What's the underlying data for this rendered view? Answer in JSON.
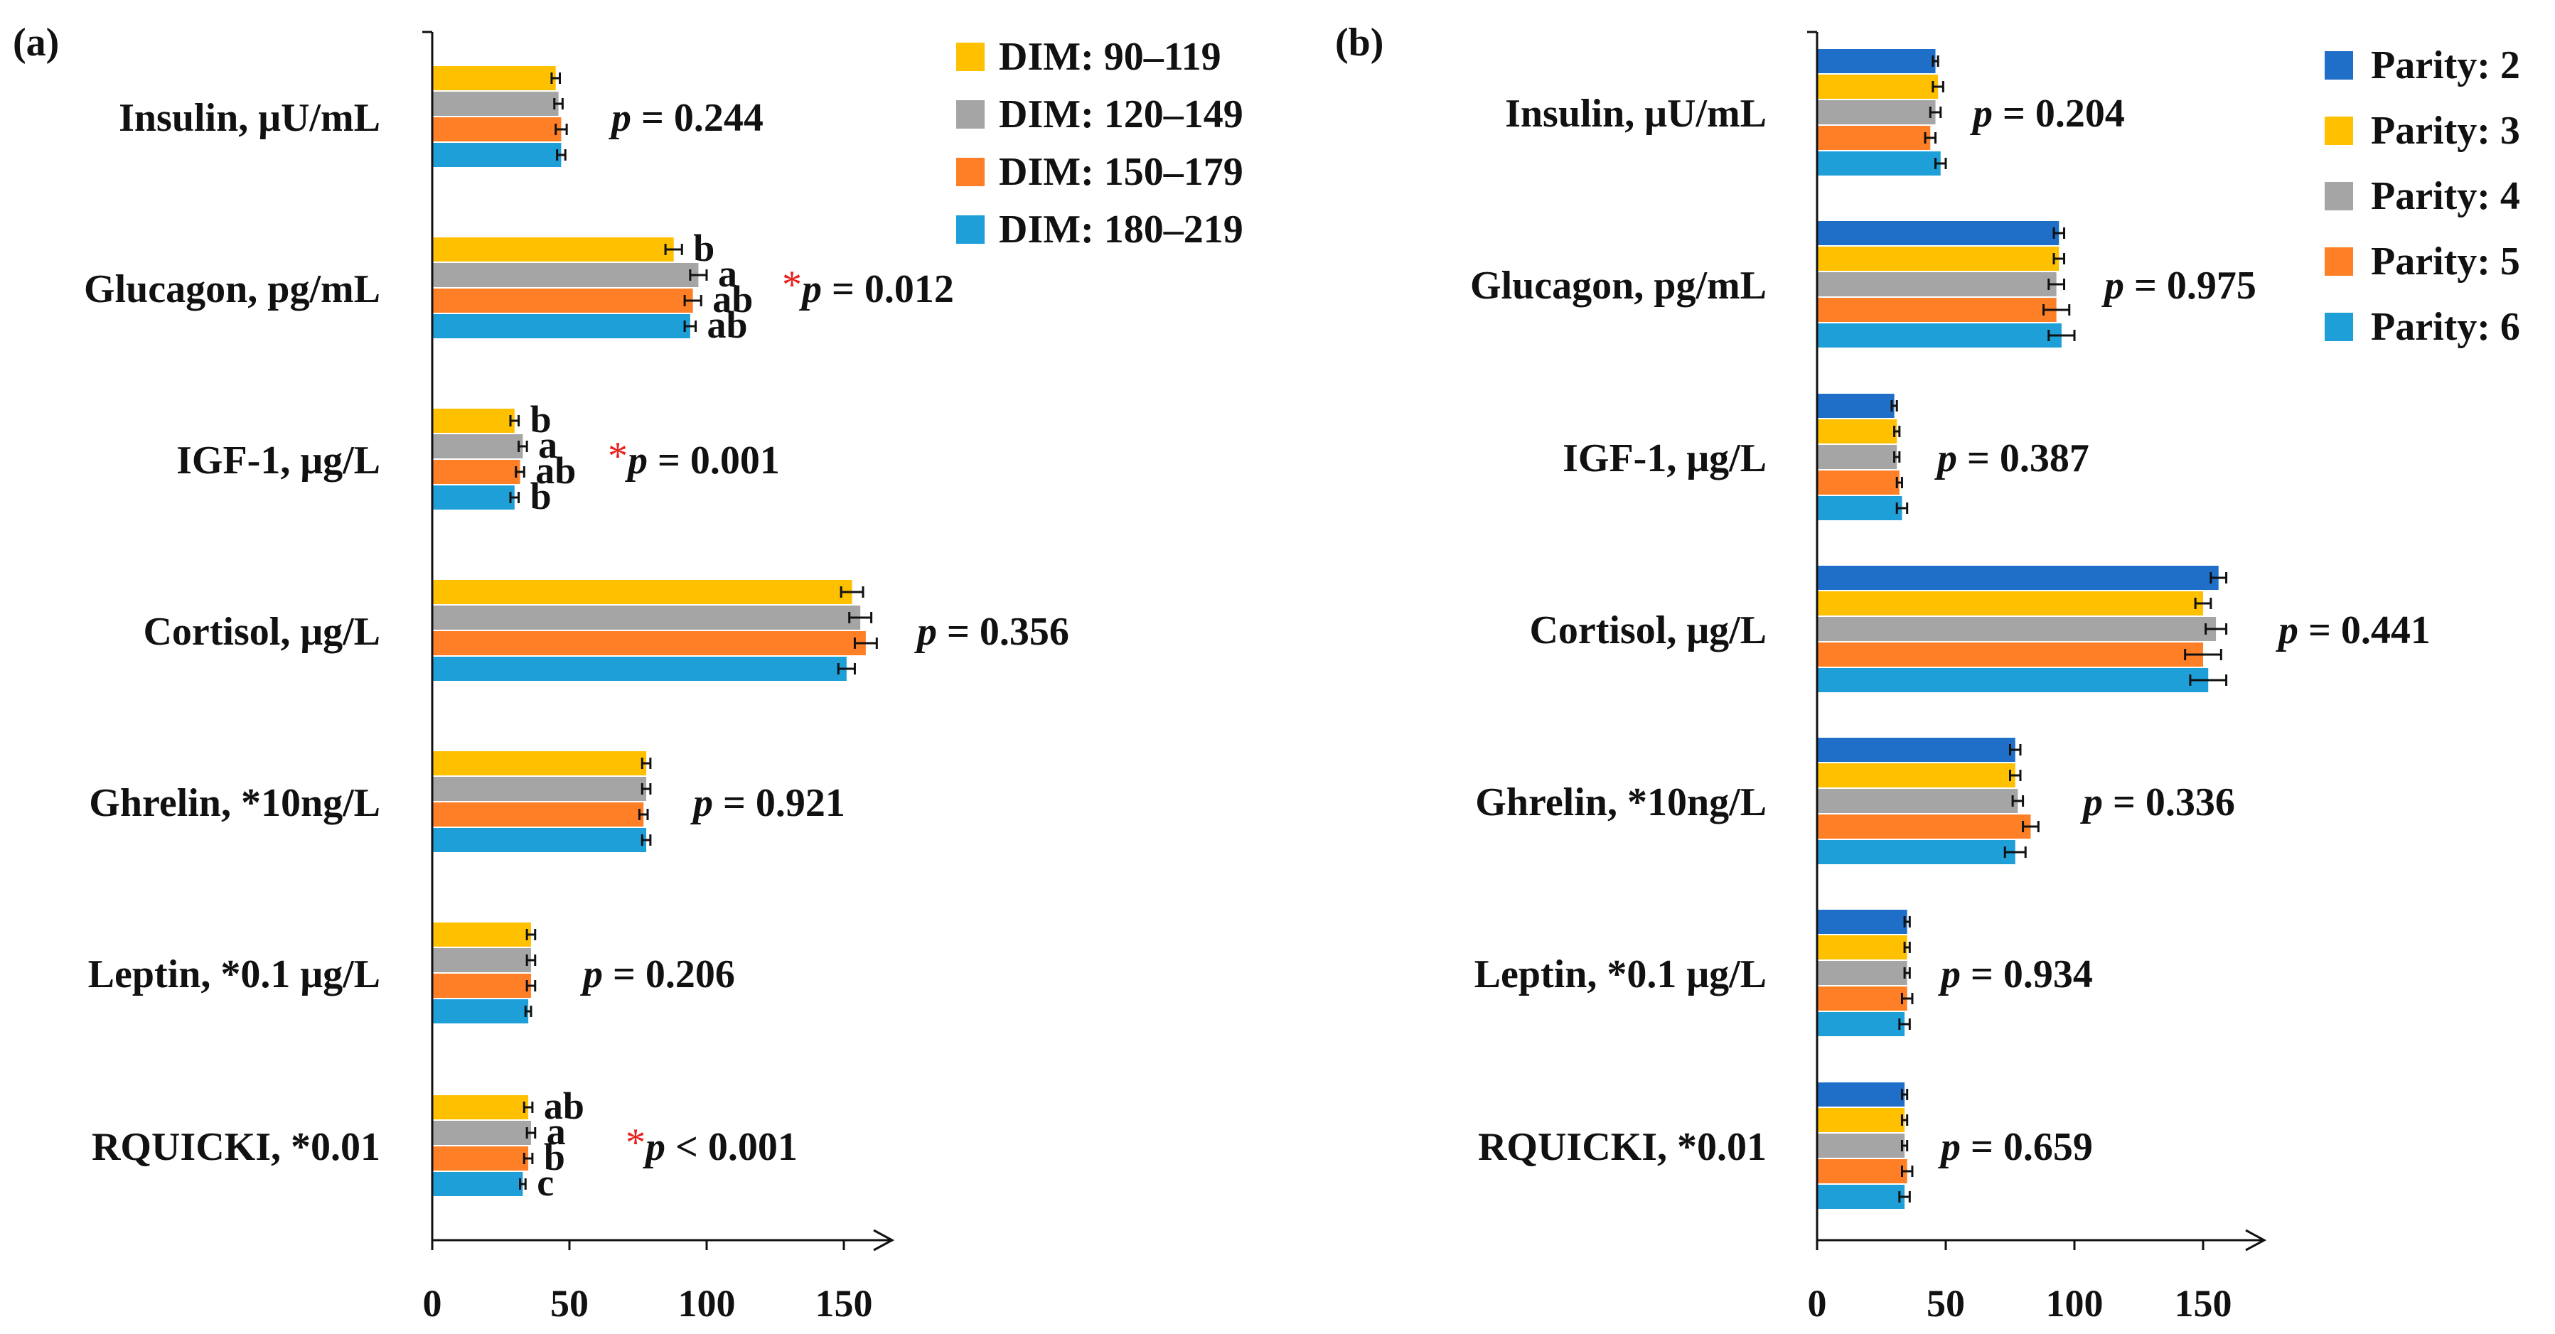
{
  "colors": {
    "dim_90_119": "#FFC000",
    "dim_120_149": "#A5A5A5",
    "dim_150_179": "#FF7F27",
    "dim_180_219": "#1E9FD8",
    "parity_2": "#1F6FC8",
    "parity_3": "#FFC000",
    "parity_4": "#A5A5A5",
    "parity_5": "#FF7F27",
    "parity_6": "#1E9FD8",
    "significance_star": "#E8211D"
  },
  "chart_data": [
    {
      "type": "bar",
      "orientation": "horizontal",
      "panel_label": "(a)",
      "categories": [
        "Insulin, μU/mL",
        "Glucagon, pg/mL",
        "IGF-1, μg/L",
        "Cortisol, μg/L",
        "Ghrelin, *10ng/L",
        "Leptin, *0.1 μg/L",
        "RQUICKI, *0.01"
      ],
      "series": [
        {
          "name": "DIM: 90–119",
          "color_key": "dim_90_119",
          "values": [
            45,
            88,
            30,
            153,
            78,
            36,
            35
          ],
          "errors": [
            1.5,
            3,
            1.5,
            4,
            1.5,
            1.5,
            1.5
          ],
          "letters": [
            "",
            "b",
            "b",
            "",
            "",
            "",
            "ab"
          ]
        },
        {
          "name": "DIM: 120–149",
          "color_key": "dim_120_149",
          "values": [
            46,
            97,
            33,
            156,
            78,
            36,
            36
          ],
          "errors": [
            1.5,
            3,
            1.5,
            4,
            1.5,
            1.5,
            1.5
          ],
          "letters": [
            "",
            "a",
            "a",
            "",
            "",
            "",
            "a"
          ]
        },
        {
          "name": "DIM: 150–179",
          "color_key": "dim_150_179",
          "values": [
            47,
            95,
            32,
            158,
            77,
            36,
            35
          ],
          "errors": [
            2,
            3,
            1.5,
            4,
            1.5,
            1.5,
            1.5
          ],
          "letters": [
            "",
            "ab",
            "ab",
            "",
            "",
            "",
            "b"
          ]
        },
        {
          "name": "DIM: 180–219",
          "color_key": "dim_180_219",
          "values": [
            47,
            94,
            30,
            151,
            78,
            35,
            33
          ],
          "errors": [
            1.5,
            2,
            1.5,
            3,
            1.5,
            1,
            1
          ],
          "letters": [
            "",
            "ab",
            "b",
            "",
            "",
            "",
            "c"
          ]
        }
      ],
      "p_values": [
        {
          "star": "",
          "label": "p",
          "value": " = 0.244"
        },
        {
          "star": "*",
          "label": "p",
          "value": " = 0.012"
        },
        {
          "star": "*",
          "label": "p",
          "value": " = 0.001"
        },
        {
          "star": "",
          "label": "p",
          "value": " = 0.356"
        },
        {
          "star": "",
          "label": "p",
          "value": " = 0.921"
        },
        {
          "star": "",
          "label": "p",
          "value": " = 0.206"
        },
        {
          "star": "*",
          "label": "p",
          "value": " < 0.001"
        }
      ],
      "x_ticks": [
        0,
        50,
        100,
        150
      ],
      "xlim": [
        0,
        170
      ],
      "legend_position": "top-right",
      "xlabel": "",
      "ylabel": ""
    },
    {
      "type": "bar",
      "orientation": "horizontal",
      "panel_label": "(b)",
      "categories": [
        "Insulin, μU/mL",
        "Glucagon, pg/mL",
        "IGF-1, μg/L",
        "Cortisol, μg/L",
        "Ghrelin, *10ng/L",
        "Leptin, *0.1 μg/L",
        "RQUICKI, *0.01"
      ],
      "series": [
        {
          "name": "Parity: 2",
          "color_key": "parity_2",
          "values": [
            46,
            94,
            30,
            156,
            77,
            35,
            34
          ],
          "errors": [
            1,
            2,
            1,
            3,
            2,
            1,
            1
          ]
        },
        {
          "name": "Parity: 3",
          "color_key": "parity_3",
          "values": [
            47,
            94,
            31,
            150,
            77,
            35,
            34
          ],
          "errors": [
            2,
            2,
            1,
            3,
            2,
            1,
            1
          ]
        },
        {
          "name": "Parity: 4",
          "color_key": "parity_4",
          "values": [
            46,
            93,
            31,
            155,
            78,
            35,
            34
          ],
          "errors": [
            2,
            3,
            1,
            4,
            2,
            1,
            1
          ]
        },
        {
          "name": "Parity: 5",
          "color_key": "parity_5",
          "values": [
            44,
            93,
            32,
            150,
            83,
            35,
            35
          ],
          "errors": [
            2,
            5,
            1,
            7,
            3,
            2,
            2
          ]
        },
        {
          "name": "Parity: 6",
          "color_key": "parity_6",
          "values": [
            48,
            95,
            33,
            152,
            77,
            34,
            34
          ],
          "errors": [
            2,
            5,
            2,
            7,
            4,
            2,
            2
          ]
        }
      ],
      "p_values": [
        {
          "star": "",
          "label": "p",
          "value": " = 0.204"
        },
        {
          "star": "",
          "label": "p",
          "value": " = 0.975"
        },
        {
          "star": "",
          "label": "p",
          "value": " = 0.387"
        },
        {
          "star": "",
          "label": "p",
          "value": " = 0.441"
        },
        {
          "star": "",
          "label": "p",
          "value": " = 0.336"
        },
        {
          "star": "",
          "label": "p",
          "value": " = 0.934"
        },
        {
          "star": "",
          "label": "p",
          "value": " = 0.659"
        }
      ],
      "x_ticks": [
        0,
        50,
        100,
        150
      ],
      "xlim": [
        0,
        170
      ],
      "legend_position": "top-right",
      "xlabel": "",
      "ylabel": ""
    }
  ]
}
